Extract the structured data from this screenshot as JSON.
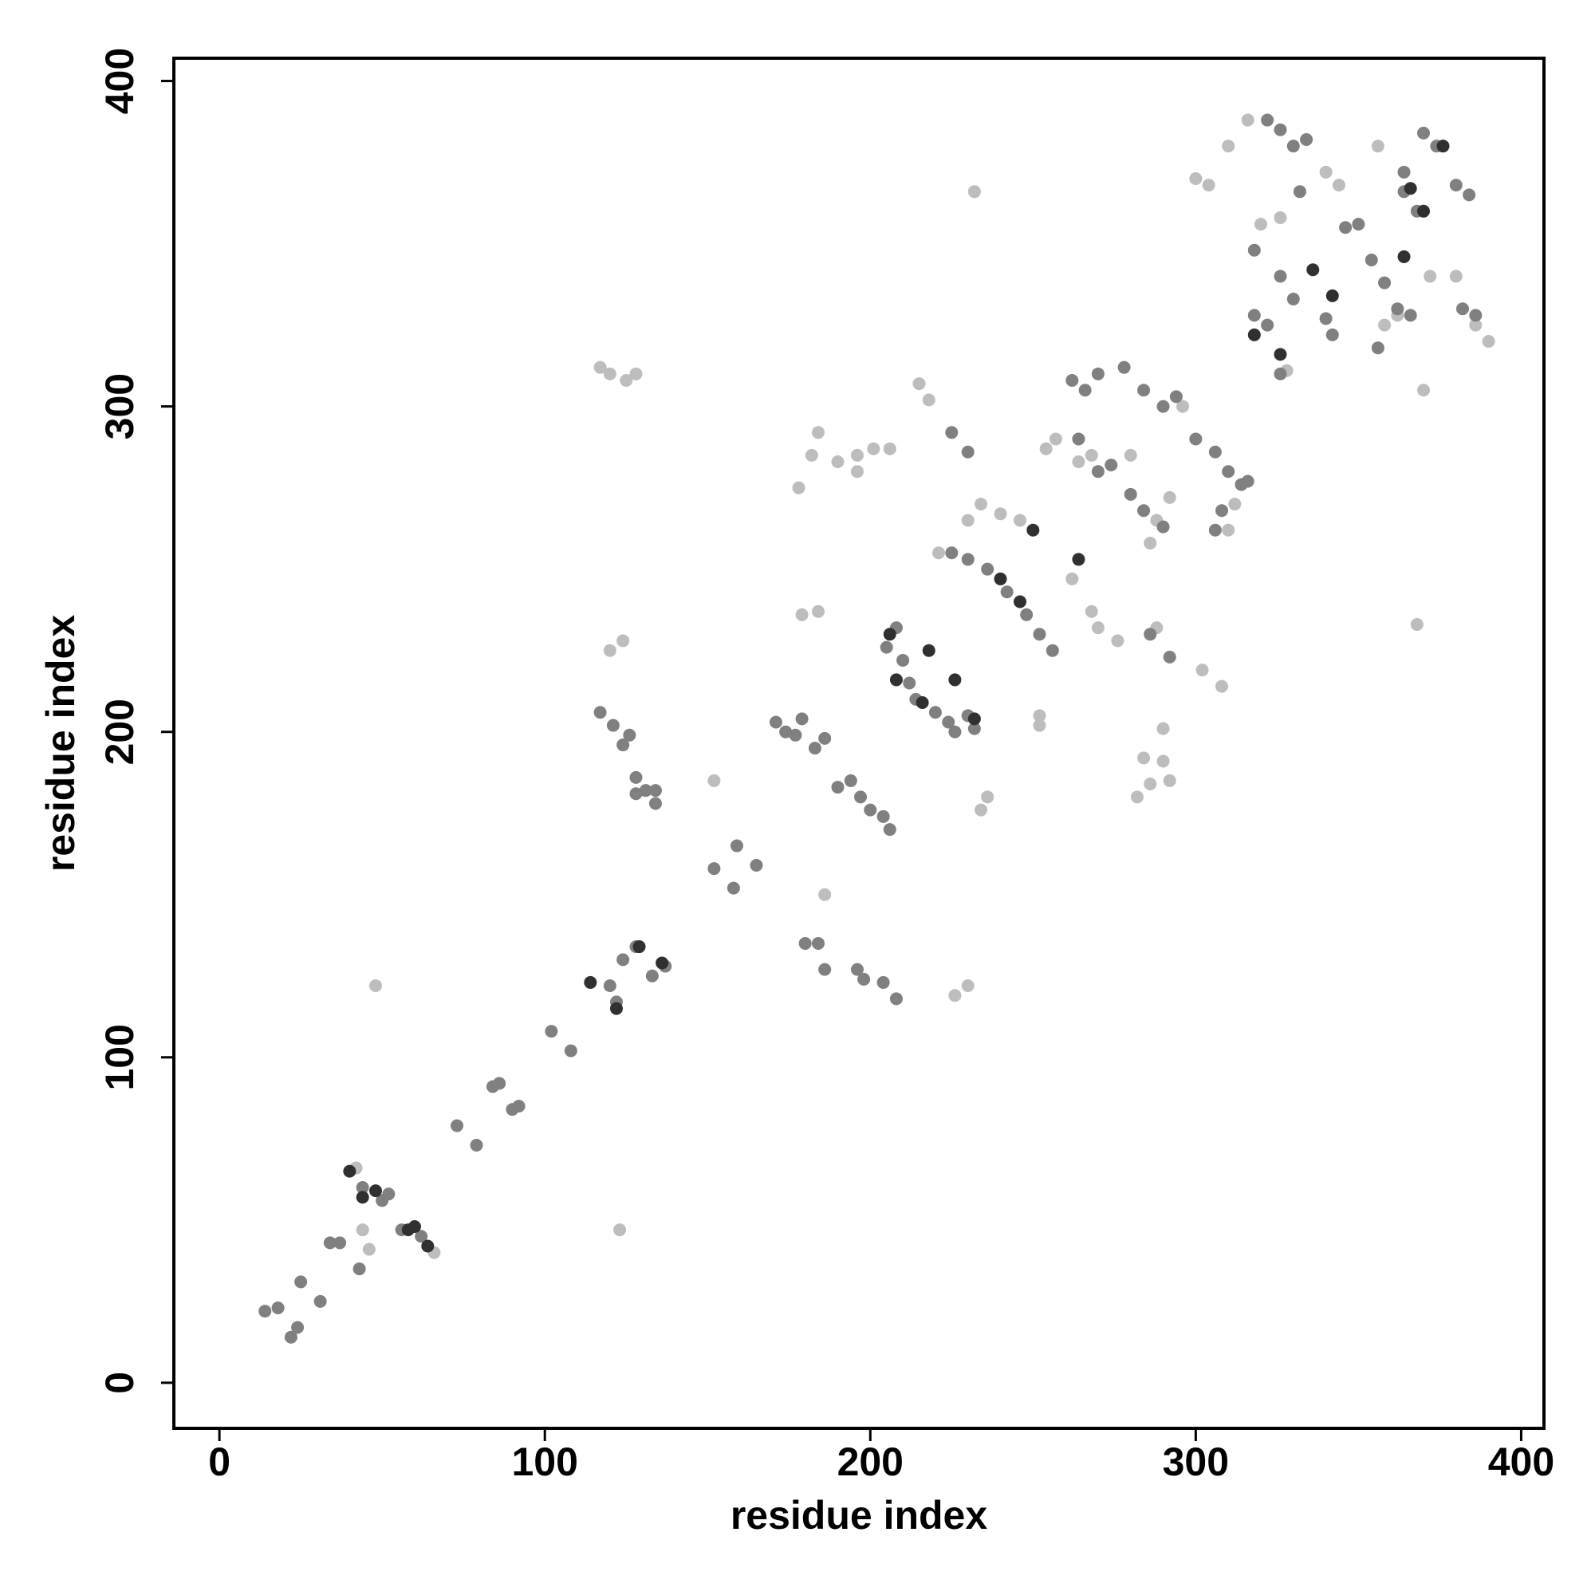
{
  "chart_data": {
    "type": "scatter",
    "x_label": "residue index",
    "y_label": "residue index",
    "xlim": [
      -14,
      407
    ],
    "ylim": [
      -14,
      407
    ],
    "xticks": [
      0,
      100,
      200,
      300,
      400
    ],
    "yticks": [
      0,
      100,
      200,
      300,
      400
    ],
    "series": [
      {
        "color": "#bdbdbd",
        "x": [
          48,
          123,
          42,
          46,
          44,
          66,
          120,
          124,
          117,
          120,
          125,
          128,
          179,
          184,
          152,
          186,
          178,
          182,
          184,
          190,
          196,
          201,
          206,
          196,
          215,
          218,
          221,
          226,
          230,
          234,
          236,
          232,
          230,
          234,
          240,
          246,
          252,
          252,
          254,
          257,
          262,
          268,
          270,
          276,
          264,
          268,
          280,
          282,
          286,
          290,
          284,
          292,
          290,
          288,
          286,
          288,
          292,
          296,
          300,
          304,
          310,
          308,
          310,
          312,
          316,
          320,
          326,
          328,
          340,
          344,
          356,
          358,
          362,
          370,
          372,
          380,
          386,
          390,
          368,
          302
        ],
        "values": [
          122,
          47,
          66,
          41,
          47,
          40,
          225,
          228,
          312,
          310,
          308,
          310,
          236,
          237,
          185,
          150,
          275,
          285,
          292,
          283,
          285,
          287,
          287,
          280,
          307,
          302,
          255,
          119,
          122,
          176,
          180,
          366,
          265,
          270,
          267,
          265,
          205,
          202,
          287,
          290,
          247,
          237,
          232,
          228,
          283,
          285,
          285,
          180,
          184,
          191,
          192,
          185,
          201,
          232,
          258,
          265,
          272,
          300,
          370,
          368,
          380,
          214,
          262,
          270,
          388,
          356,
          358,
          311,
          372,
          368,
          380,
          325,
          328,
          305,
          340,
          340,
          325,
          320,
          233,
          219
        ]
      },
      {
        "color": "#808080",
        "x": [
          14,
          18,
          22,
          24,
          25,
          31,
          34,
          37,
          43,
          44,
          50,
          52,
          56,
          62,
          73,
          79,
          84,
          86,
          90,
          92,
          102,
          108,
          117,
          121,
          124,
          126,
          128,
          128,
          131,
          134,
          134,
          120,
          122,
          124,
          128,
          133,
          137,
          152,
          158,
          159,
          165,
          171,
          174,
          177,
          179,
          183,
          186,
          190,
          194,
          197,
          200,
          204,
          206,
          180,
          184,
          186,
          196,
          198,
          204,
          208,
          205,
          208,
          210,
          212,
          214,
          220,
          224,
          226,
          230,
          232,
          225,
          230,
          225,
          230,
          236,
          242,
          248,
          252,
          256,
          262,
          266,
          270,
          278,
          284,
          290,
          294,
          264,
          270,
          274,
          280,
          284,
          290,
          286,
          292,
          300,
          306,
          310,
          314,
          306,
          308,
          316,
          318,
          318,
          322,
          326,
          326,
          330,
          332,
          334,
          340,
          342,
          346,
          350,
          354,
          358,
          362,
          366,
          364,
          370,
          374,
          380,
          384,
          382,
          386,
          356,
          364,
          368,
          322,
          326,
          330
        ],
        "values": [
          22,
          23,
          14,
          17,
          31,
          25,
          43,
          43,
          35,
          60,
          56,
          58,
          47,
          45,
          79,
          73,
          91,
          92,
          84,
          85,
          108,
          102,
          206,
          202,
          196,
          199,
          186,
          181,
          182,
          182,
          178,
          122,
          117,
          130,
          134,
          125,
          128,
          158,
          152,
          165,
          159,
          203,
          200,
          199,
          204,
          195,
          198,
          183,
          185,
          180,
          176,
          174,
          170,
          135,
          135,
          127,
          127,
          124,
          123,
          118,
          226,
          232,
          222,
          215,
          210,
          206,
          203,
          200,
          205,
          201,
          292,
          286,
          255,
          253,
          250,
          243,
          236,
          230,
          225,
          308,
          305,
          310,
          312,
          305,
          300,
          303,
          290,
          280,
          282,
          273,
          268,
          263,
          230,
          223,
          290,
          286,
          280,
          276,
          262,
          268,
          277,
          348,
          328,
          325,
          310,
          340,
          333,
          366,
          382,
          327,
          322,
          355,
          356,
          345,
          338,
          330,
          328,
          372,
          384,
          380,
          368,
          365,
          330,
          328,
          318,
          366,
          360,
          388,
          385,
          380
        ]
      },
      {
        "color": "#303030",
        "x": [
          40,
          44,
          48,
          58,
          60,
          64,
          114,
          122,
          129,
          136,
          206,
          208,
          216,
          218,
          226,
          232,
          240,
          246,
          250,
          264,
          318,
          326,
          336,
          342,
          364,
          366,
          370,
          376
        ],
        "values": [
          65,
          57,
          59,
          47,
          48,
          42,
          123,
          115,
          134,
          129,
          230,
          216,
          209,
          225,
          216,
          204,
          247,
          240,
          262,
          253,
          322,
          316,
          342,
          334,
          346,
          367,
          360,
          380
        ]
      }
    ]
  }
}
